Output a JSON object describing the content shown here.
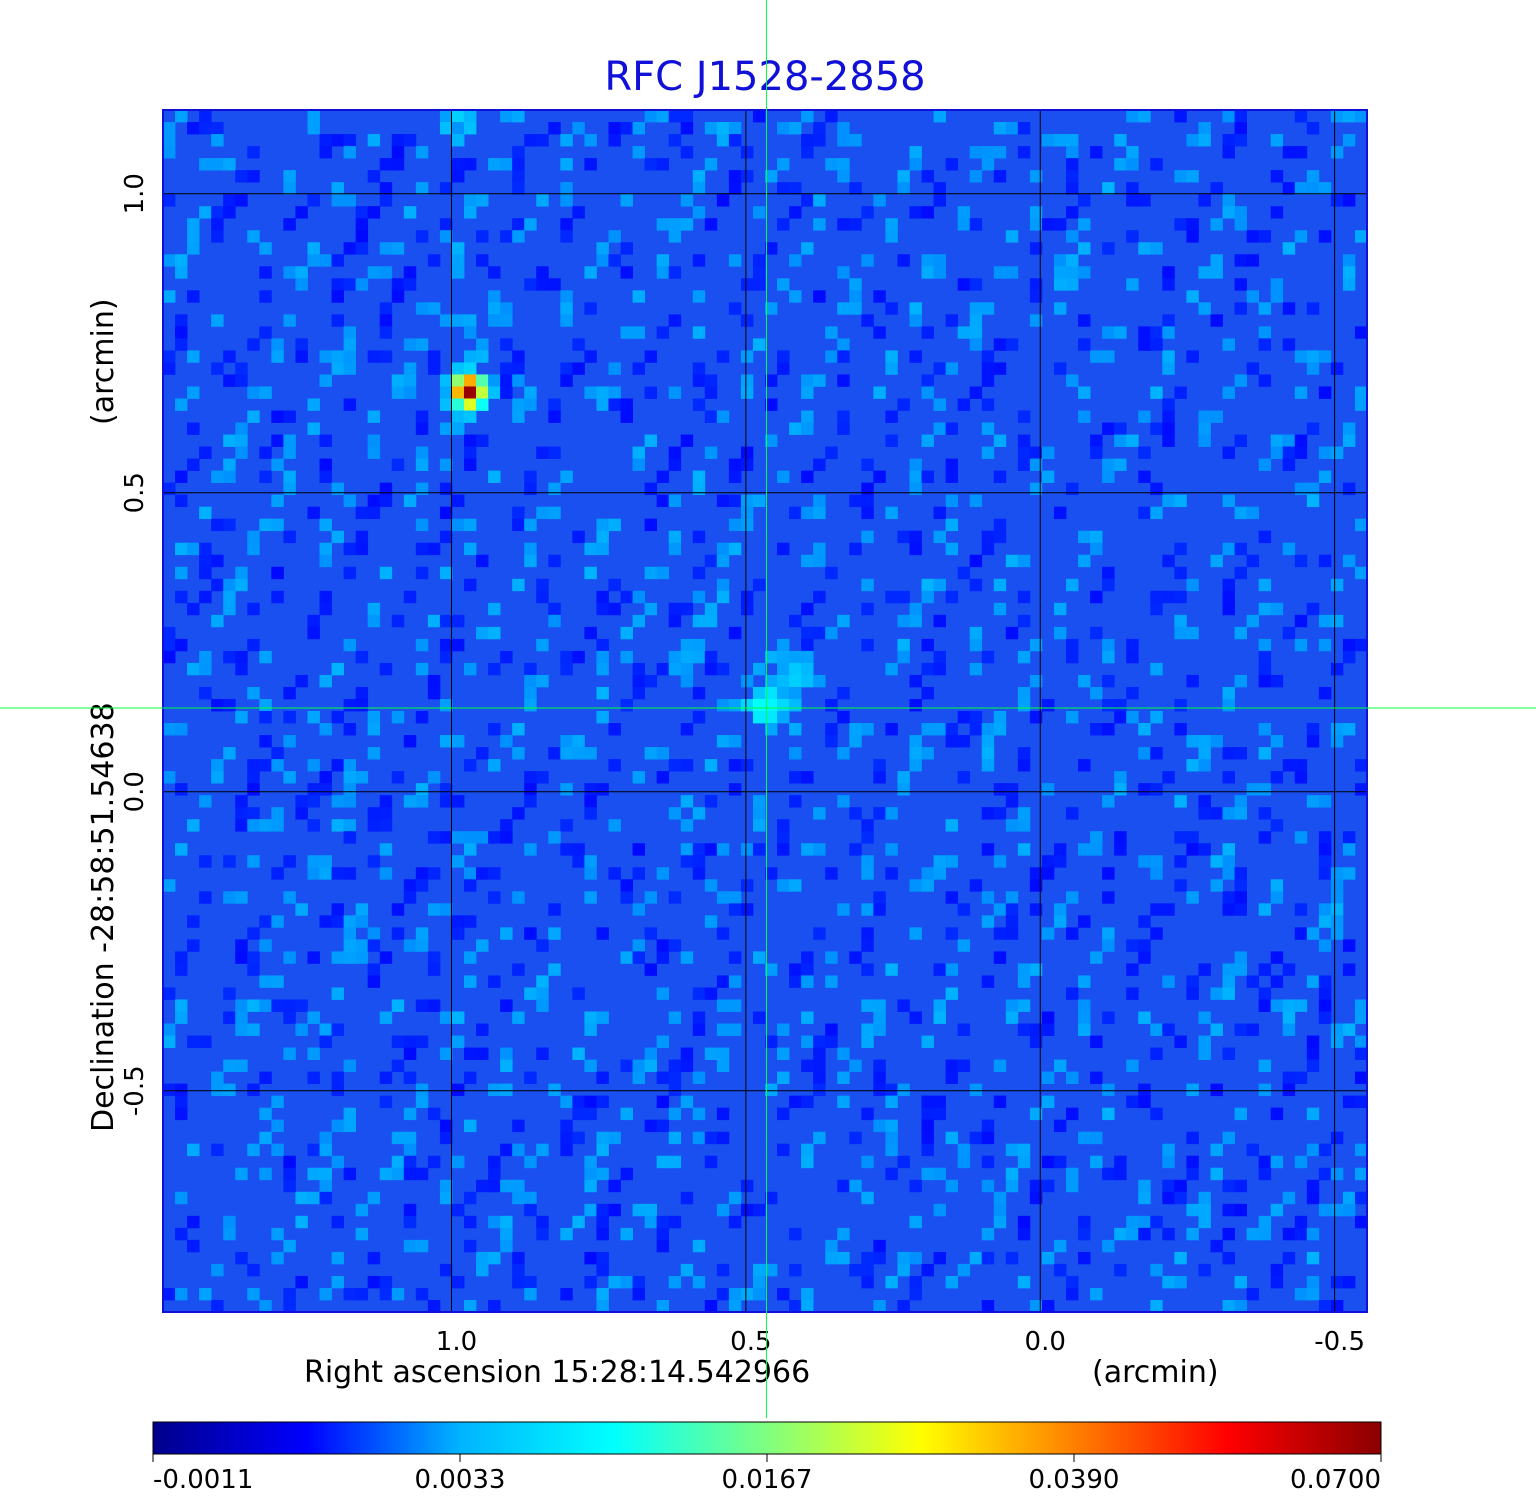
{
  "chart_data": {
    "type": "heatmap",
    "title": "RFC J1528-2858",
    "xlabel": "Right ascension  15:28:14.542966",
    "xlabel_unit": "(arcmin)",
    "ylabel": "Declination  -28:58:51.54638",
    "ylabel_unit": "(arcmin)",
    "x_ticks": [
      "1.0",
      "0.5",
      "0.0",
      "-0.5"
    ],
    "y_ticks": [
      "1.0",
      "0.5",
      "0.0",
      "-0.5"
    ],
    "x_tick_values": [
      1.0,
      0.5,
      0.0,
      -0.5
    ],
    "y_tick_values": [
      1.0,
      0.5,
      0.0,
      -0.5
    ],
    "xlim": [
      1.49,
      -0.555
    ],
    "ylim": [
      -0.87,
      1.14
    ],
    "grid": true,
    "crosshair": {
      "x": 0.465,
      "y": 0.14
    },
    "colorbar": {
      "ticks": [
        "-0.0011",
        "0.0033",
        "0.0167",
        "0.0390",
        "0.0700"
      ],
      "colormap": [
        "#00008b",
        "#0000ff",
        "#00b4ff",
        "#00ffff",
        "#80ff80",
        "#ffff00",
        "#ff8000",
        "#ff0000",
        "#8b0000"
      ]
    },
    "sources": [
      {
        "x": 0.97,
        "y": 0.67,
        "peak": 0.07
      },
      {
        "x": 0.465,
        "y": 0.145,
        "peak": 0.02
      },
      {
        "x": 0.42,
        "y": 0.2,
        "peak": 0.008
      },
      {
        "x": 0.97,
        "y": 0.8,
        "peak": 0.004
      },
      {
        "x": 0.98,
        "y": 1.12,
        "peak": 0.006
      }
    ],
    "background_color": "#1a50f0"
  }
}
